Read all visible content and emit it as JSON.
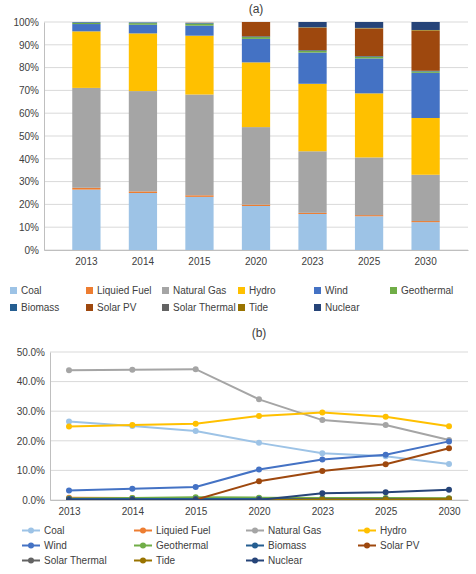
{
  "chart_data": [
    {
      "type": "bar",
      "title": "(a)",
      "stacked": true,
      "grid": true,
      "legend": "bottom",
      "categories": [
        "2013",
        "2014",
        "2015",
        "2020",
        "2023",
        "2025",
        "2030"
      ],
      "ylim": [
        0,
        100
      ],
      "yticks": [
        {
          "value": 0,
          "label": "0%"
        },
        {
          "value": 10,
          "label": "10%"
        },
        {
          "value": 20,
          "label": "20%"
        },
        {
          "value": 30,
          "label": "30%"
        },
        {
          "value": 40,
          "label": "40%"
        },
        {
          "value": 50,
          "label": "50%"
        },
        {
          "value": 60,
          "label": "60%"
        },
        {
          "value": 70,
          "label": "70%"
        },
        {
          "value": 80,
          "label": "80%"
        },
        {
          "value": 90,
          "label": "90%"
        },
        {
          "value": 100,
          "label": "100%"
        }
      ],
      "series": [
        {
          "name": "Coal",
          "color": "#9dc3e6",
          "values": [
            26.5,
            25,
            23.3,
            19.3,
            15.8,
            14.8,
            12.2
          ]
        },
        {
          "name": "Liquied Fuel",
          "color": "#ed7d31",
          "values": [
            0.8,
            0.7,
            0.7,
            0.6,
            0.5,
            0.5,
            0.5
          ]
        },
        {
          "name": "Natural Gas",
          "color": "#a5a5a5",
          "values": [
            43.8,
            44,
            44.2,
            34,
            27,
            25.3,
            20.3
          ]
        },
        {
          "name": "Hydro",
          "color": "#ffc000",
          "values": [
            24.8,
            25.3,
            25.8,
            28.4,
            29.6,
            28.1,
            24.9
          ]
        },
        {
          "name": "Wind",
          "color": "#4472c4",
          "values": [
            3.2,
            3.8,
            4.4,
            10.3,
            13.7,
            15.3,
            19.8
          ]
        },
        {
          "name": "Geothermal",
          "color": "#70ad47",
          "values": [
            0.5,
            0.7,
            0.9,
            0.8,
            0.7,
            0.7,
            0.6
          ]
        },
        {
          "name": "Biomass",
          "color": "#255e91",
          "values": [
            0.3,
            0.3,
            0.3,
            0.3,
            0.3,
            0.3,
            0.3
          ]
        },
        {
          "name": "Solar PV",
          "color": "#9e480e",
          "values": [
            0,
            0,
            0.1,
            6.3,
            9.8,
            12.1,
            17.5
          ]
        },
        {
          "name": "Solar Thermal",
          "color": "#636363",
          "values": [
            0,
            0,
            0,
            0,
            0.1,
            0.1,
            0.1
          ]
        },
        {
          "name": "Tide",
          "color": "#997300",
          "values": [
            0,
            0,
            0,
            0,
            0.2,
            0.2,
            0.3
          ]
        },
        {
          "name": "Nuclear",
          "color": "#264478",
          "values": [
            0,
            0,
            0,
            0,
            2.3,
            2.6,
            3.5
          ]
        }
      ]
    },
    {
      "type": "line",
      "title": "(b)",
      "grid": true,
      "legend": "bottom",
      "marker": "circle",
      "categories": [
        "2013",
        "2014",
        "2015",
        "2020",
        "2023",
        "2025",
        "2030"
      ],
      "ylim": [
        0,
        50
      ],
      "yticks": [
        {
          "value": 0,
          "label": "0.0%"
        },
        {
          "value": 10,
          "label": "10.0%"
        },
        {
          "value": 20,
          "label": "20.0%"
        },
        {
          "value": 30,
          "label": "30.0%"
        },
        {
          "value": 40,
          "label": "40.0%"
        },
        {
          "value": 50,
          "label": "50.0%"
        }
      ],
      "series": [
        {
          "name": "Coal",
          "color": "#9dc3e6",
          "values": [
            26.5,
            25,
            23.3,
            19.3,
            15.8,
            14.8,
            12.2
          ]
        },
        {
          "name": "Liquied Fuel",
          "color": "#ed7d31",
          "values": [
            0.8,
            0.7,
            0.7,
            0.6,
            0.5,
            0.5,
            0.5
          ]
        },
        {
          "name": "Natural Gas",
          "color": "#a5a5a5",
          "values": [
            43.8,
            44,
            44.2,
            34,
            27,
            25.3,
            20.3
          ]
        },
        {
          "name": "Hydro",
          "color": "#ffc000",
          "values": [
            24.8,
            25.3,
            25.8,
            28.4,
            29.6,
            28.1,
            24.9
          ]
        },
        {
          "name": "Wind",
          "color": "#4472c4",
          "values": [
            3.2,
            3.8,
            4.4,
            10.3,
            13.7,
            15.3,
            19.8
          ]
        },
        {
          "name": "Geothermal",
          "color": "#70ad47",
          "values": [
            0.5,
            0.7,
            0.9,
            0.8,
            0.7,
            0.7,
            0.6
          ]
        },
        {
          "name": "Biomass",
          "color": "#255e91",
          "values": [
            0.3,
            0.3,
            0.3,
            0.3,
            0.3,
            0.3,
            0.3
          ]
        },
        {
          "name": "Solar PV",
          "color": "#9e480e",
          "values": [
            0,
            0,
            0.1,
            6.3,
            9.8,
            12.1,
            17.5
          ]
        },
        {
          "name": "Solar Thermal",
          "color": "#636363",
          "values": [
            0,
            0,
            0,
            0,
            0.1,
            0.1,
            0.1
          ]
        },
        {
          "name": "Tide",
          "color": "#997300",
          "values": [
            0,
            0,
            0,
            0,
            0.2,
            0.2,
            0.3
          ]
        },
        {
          "name": "Nuclear",
          "color": "#264478",
          "values": [
            0,
            0,
            0,
            0,
            2.3,
            2.6,
            3.5
          ]
        }
      ]
    }
  ]
}
